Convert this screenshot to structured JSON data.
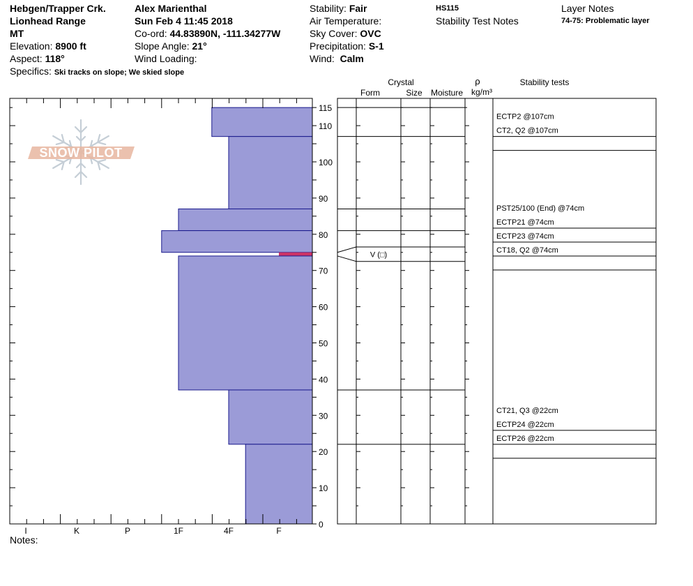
{
  "header": {
    "col1": {
      "location": "Hebgen/Trapper Crk.",
      "range": "Lionhead Range",
      "state": "MT",
      "elevation_label": "Elevation:",
      "elevation_value": "8900 ft",
      "aspect_label": "Aspect:",
      "aspect_value": "118°",
      "specifics_label": "Specifics:",
      "specifics_value": "Ski tracks on slope; We skied slope"
    },
    "col2": {
      "observer": "Alex Marienthal",
      "datetime": "Sun Feb 4 11:45 2018",
      "coord_label": "Co-ord:",
      "coord_value": "44.83890N, -111.34277W",
      "slope_label": "Slope Angle:",
      "slope_value": "21°",
      "wind_loading_label": "Wind Loading:"
    },
    "col3": {
      "stability_label": "Stability:",
      "stability_value": "Fair",
      "air_temp_label": "Air Temperature:",
      "sky_label": "Sky Cover:",
      "sky_value": "OVC",
      "precip_label": "Precipitation:",
      "precip_value": "S-1",
      "wind_label": "Wind:",
      "wind_value": "Calm"
    },
    "col4": {
      "hs": "HS115",
      "stability_notes_label": "Stability Test Notes"
    },
    "col5": {
      "layer_notes_label": "Layer Notes",
      "layer_note": "74-75: Problematic layer"
    }
  },
  "logo": {
    "text": "SNOW PILOT"
  },
  "notes_label": "Notes:",
  "colors": {
    "hardness_fill": "#9b9bd7",
    "hardness_stroke": "#1a1a8c",
    "marker": "#cc3366",
    "logo": "#e7b6a0",
    "snowflake": "#c5ced6"
  },
  "chart_data": {
    "type": "bar",
    "title": "",
    "xlabel": "",
    "ylabel": "",
    "y_range_cm": [
      0,
      118
    ],
    "hardness_scale": [
      "I",
      "K",
      "P",
      "1F",
      "4F",
      "F"
    ],
    "y_ticks": [
      0,
      10,
      20,
      30,
      40,
      50,
      60,
      70,
      80,
      90,
      100,
      110,
      115
    ],
    "layers": [
      {
        "bottom": 107,
        "top": 115,
        "hardness": "4F-"
      },
      {
        "bottom": 87,
        "top": 107,
        "hardness": "4F"
      },
      {
        "bottom": 81,
        "top": 87,
        "hardness": "1F"
      },
      {
        "bottom": 75,
        "top": 81,
        "hardness": "1F-"
      },
      {
        "bottom": 74,
        "top": 75,
        "hardness": "F"
      },
      {
        "bottom": 37,
        "top": 74,
        "hardness": "1F"
      },
      {
        "bottom": 22,
        "top": 37,
        "hardness": "4F"
      },
      {
        "bottom": 0,
        "top": 22,
        "hardness": "4F+"
      }
    ],
    "layer_boundaries": [
      115,
      107,
      87,
      81,
      75,
      74,
      37,
      22
    ],
    "grain_layers": [
      {
        "top": 75,
        "bottom": 74,
        "form": "V (□)"
      }
    ],
    "table_headers": {
      "crystal": "Crystal",
      "form": "Form",
      "size": "Size",
      "moisture": "Moisture",
      "rho": "ρ",
      "density_unit": "kg/m³",
      "stability_tests": "Stability tests"
    },
    "stability_tests": [
      {
        "label": "ECTP2 @107cm",
        "depth": 107
      },
      {
        "label": "CT2, Q2 @107cm",
        "depth": 107
      },
      {
        "label": "PST25/100 (End) @74cm",
        "depth": 74
      },
      {
        "label": "ECTP21 @74cm",
        "depth": 74
      },
      {
        "label": "ECTP23 @74cm",
        "depth": 74
      },
      {
        "label": "CT18, Q2 @74cm",
        "depth": 74
      },
      {
        "label": "CT21, Q3 @22cm",
        "depth": 22
      },
      {
        "label": "ECTP24 @22cm",
        "depth": 22
      },
      {
        "label": "ECTP26 @22cm",
        "depth": 22
      }
    ]
  }
}
